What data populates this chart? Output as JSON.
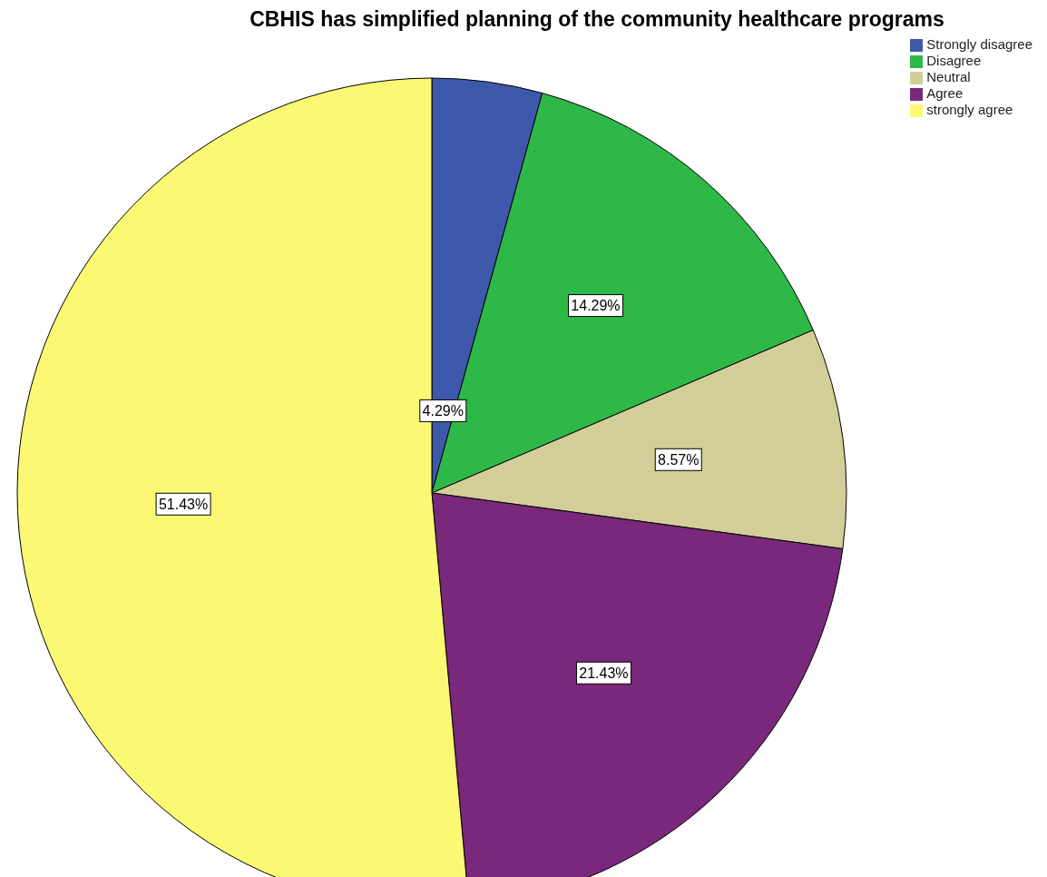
{
  "chart_data": {
    "type": "pie",
    "title": "CBHIS has simplified planning of the community healthcare programs",
    "categories": [
      "Strongly disagree",
      "Disagree",
      "Neutral",
      "Agree",
      "strongly agree"
    ],
    "values": [
      4.29,
      14.29,
      8.57,
      21.43,
      51.43
    ],
    "colors": [
      "#3e58ac",
      "#2eb848",
      "#d3ce97",
      "#79287c",
      "#fbf873"
    ],
    "value_labels": [
      "4.29%",
      "14.29%",
      "8.57%",
      "21.43%",
      "51.43%"
    ],
    "legend": "top right"
  }
}
